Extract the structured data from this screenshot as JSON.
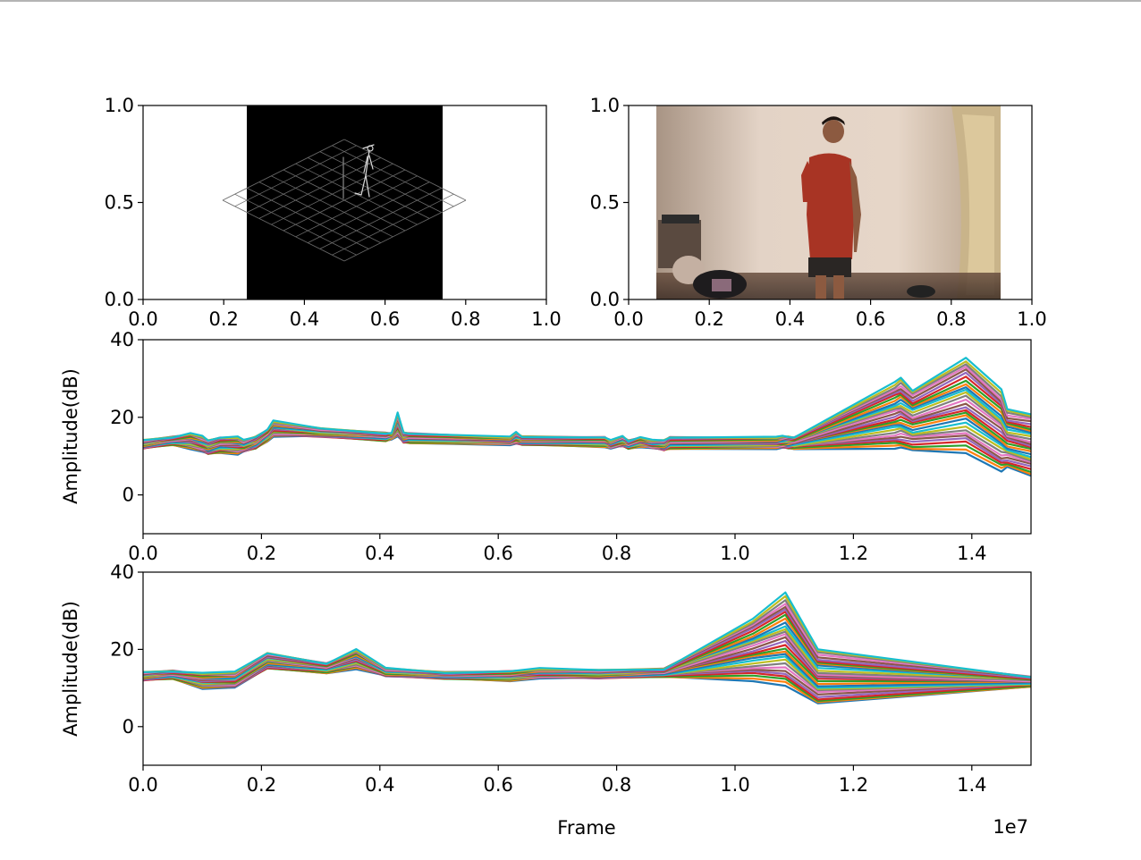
{
  "figure": {
    "offset_label": "1e7",
    "x_label": "Frame"
  },
  "image_panels": [
    {
      "panel": "skeleton-render",
      "content": "3D stick-figure skeleton standing on a wireframe floor grid, black background",
      "xlim": [
        0,
        1
      ],
      "ylim": [
        0,
        1
      ],
      "xticks": [
        "0.0",
        "0.2",
        "0.4",
        "0.6",
        "0.8",
        "1.0"
      ],
      "yticks": [
        "0.0",
        "0.5",
        "1.0"
      ]
    },
    {
      "panel": "camera-frame",
      "content": "video frame of a person in a red shirt standing in a room with a beige wall and a door",
      "xlim": [
        0,
        1
      ],
      "ylim": [
        0,
        1
      ],
      "xticks": [
        "0.0",
        "0.2",
        "0.4",
        "0.6",
        "0.8",
        "1.0"
      ],
      "yticks": [
        "0.0",
        "0.5",
        "1.0"
      ]
    }
  ],
  "chart_data": [
    {
      "type": "line",
      "ylabel": "Amplitude(dB)",
      "xlim": [
        0,
        15000000
      ],
      "ylim": [
        -10,
        40
      ],
      "xticks": [
        "0.0",
        "0.2",
        "0.4",
        "0.6",
        "0.8",
        "1.0",
        "1.2",
        "1.4"
      ],
      "yticks": [
        "0",
        "20",
        "40"
      ],
      "grid": false,
      "series_count": 30,
      "x": [
        0,
        500000,
        800000,
        1000000,
        1100000,
        1300000,
        1600000,
        1700000,
        1900000,
        2100000,
        2200000,
        3000000,
        4100000,
        4200000,
        4300000,
        4400000,
        4500000,
        6200000,
        6300000,
        6400000,
        7800000,
        7900000,
        8100000,
        8200000,
        8400000,
        8600000,
        8800000,
        8900000,
        10700000,
        10800000,
        10900000,
        11000000,
        12700000,
        12800000,
        13000000,
        13900000,
        14500000,
        14600000,
        15000000
      ],
      "envelope_low": [
        12,
        13,
        12,
        11,
        10.5,
        11,
        10.5,
        11,
        12,
        14,
        15,
        15,
        14,
        14.5,
        15,
        13.5,
        13.5,
        13,
        13,
        13,
        12.5,
        12,
        12.5,
        12,
        12.5,
        12,
        11.5,
        12,
        12,
        12,
        12,
        12,
        12,
        12,
        11.5,
        11,
        6,
        7,
        5
      ],
      "envelope_high": [
        14,
        15,
        16,
        15,
        14,
        15,
        15,
        14,
        15,
        17,
        19,
        17,
        16,
        16,
        21,
        16,
        16,
        15,
        16,
        15,
        15,
        14,
        15,
        14,
        15,
        14,
        14,
        15,
        15,
        15,
        15,
        15,
        29,
        30,
        27,
        35.5,
        27,
        22,
        21
      ]
    },
    {
      "type": "line",
      "ylabel": "Amplitude(dB)",
      "xlabel": "Frame",
      "xlim": [
        0,
        15000000
      ],
      "ylim": [
        -10,
        40
      ],
      "xticks": [
        "0.0",
        "0.2",
        "0.4",
        "0.6",
        "0.8",
        "1.0",
        "1.2",
        "1.4"
      ],
      "yticks": [
        "0",
        "20",
        "40"
      ],
      "grid": false,
      "series_count": 30,
      "x": [
        0,
        500000,
        1000000,
        1550000,
        2100000,
        3100000,
        3600000,
        4100000,
        5100000,
        6200000,
        6700000,
        7700000,
        8800000,
        10300000,
        10850000,
        11400000,
        15000000
      ],
      "envelope_low": [
        12,
        12.5,
        10,
        10,
        15,
        14,
        15,
        13,
        12.5,
        12,
        12.5,
        12.5,
        13,
        12,
        10.5,
        5.8,
        10.5
      ],
      "envelope_high": [
        14,
        14.5,
        14,
        14,
        19,
        16.5,
        20,
        15,
        14,
        14.5,
        15,
        14.5,
        15,
        28,
        34.5,
        20,
        13
      ]
    }
  ],
  "colors": {
    "series": [
      "#1f77b4",
      "#ff7f0e",
      "#2ca02c",
      "#d62728",
      "#9467bd",
      "#8c564b",
      "#e377c2",
      "#7f7f7f",
      "#bcbd22",
      "#17becf"
    ]
  }
}
